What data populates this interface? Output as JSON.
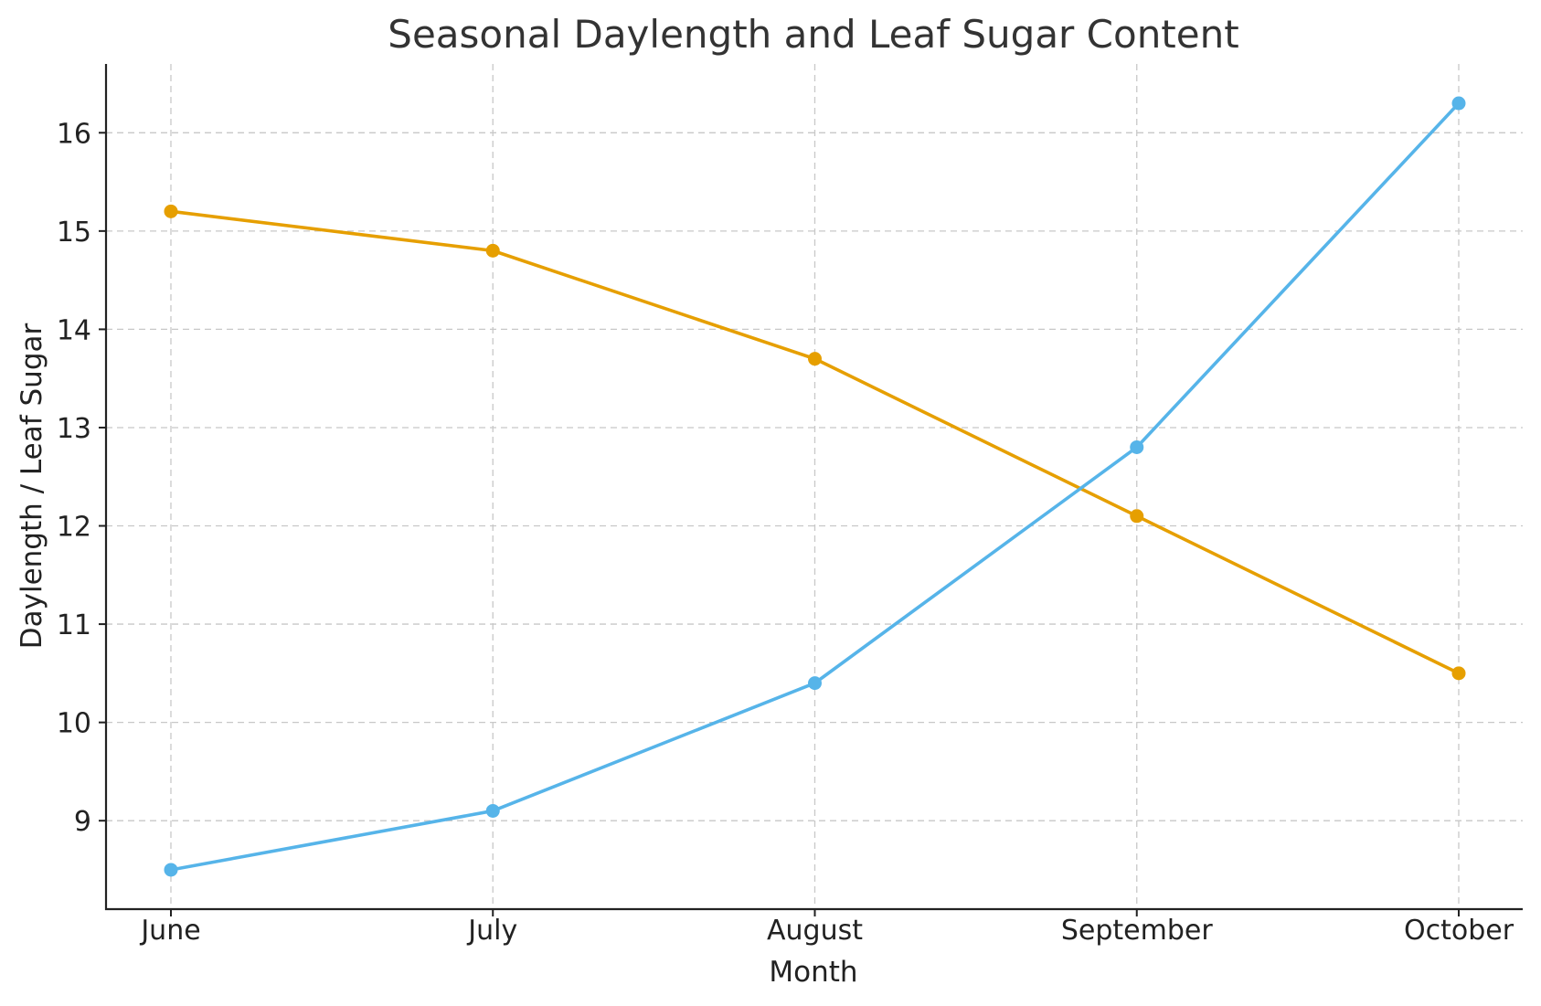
{
  "chart_data": {
    "type": "line",
    "title": "Seasonal Daylength and Leaf Sugar Content",
    "xlabel": "Month",
    "ylabel": "Daylength / Leaf Sugar",
    "categories": [
      "June",
      "July",
      "August",
      "September",
      "October"
    ],
    "yticks": [
      "9",
      "10",
      "11",
      "12",
      "13",
      "14",
      "15",
      "16"
    ],
    "ylim": [
      8.1,
      16.7
    ],
    "grid": true,
    "series": [
      {
        "values": [
          15.2,
          14.8,
          13.7,
          12.1,
          10.5
        ],
        "color": "#E69F00"
      },
      {
        "values": [
          8.5,
          9.1,
          10.4,
          12.8,
          16.3
        ],
        "color": "#56B4E9"
      }
    ]
  }
}
